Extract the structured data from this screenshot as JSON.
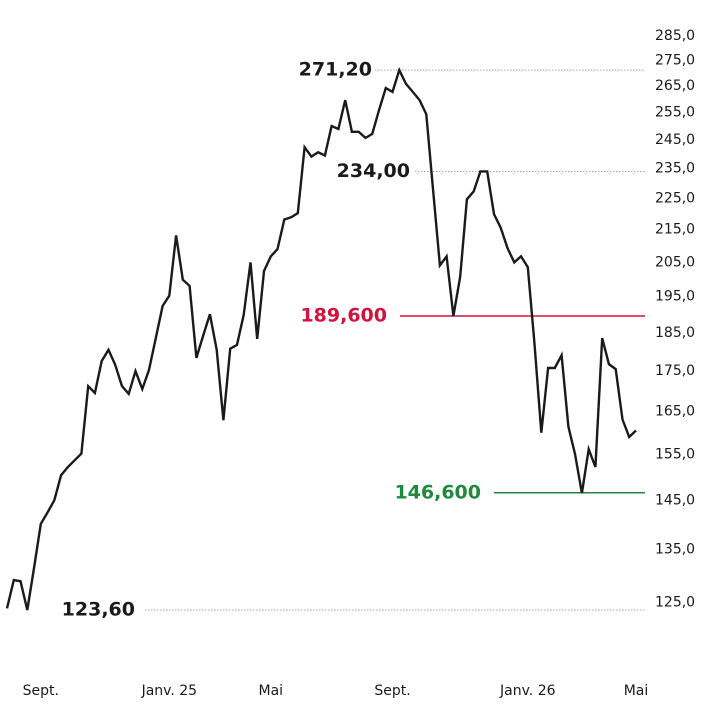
{
  "chart_data": {
    "type": "line",
    "log_scale": true,
    "color": "#1a1a1a",
    "categories": [
      null,
      null,
      null,
      null,
      null,
      "Sept.",
      null,
      null,
      null,
      null,
      null,
      null,
      null,
      null,
      null,
      null,
      null,
      null,
      null,
      null,
      null,
      null,
      null,
      null,
      "Janv. 25",
      null,
      null,
      null,
      null,
      null,
      null,
      null,
      null,
      null,
      null,
      null,
      null,
      null,
      null,
      "Mai",
      null,
      null,
      null,
      null,
      null,
      null,
      null,
      null,
      null,
      null,
      null,
      null,
      null,
      null,
      null,
      null,
      null,
      "Sept.",
      null,
      null,
      null,
      null,
      null,
      null,
      null,
      null,
      null,
      null,
      null,
      null,
      null,
      null,
      null,
      null,
      null,
      null,
      null,
      "Janv. 26",
      null,
      null,
      null,
      null,
      null,
      null,
      null,
      null,
      null,
      null,
      null,
      null,
      null,
      null,
      null,
      "Mai"
    ],
    "values": [
      123.9,
      129.1,
      128.9,
      123.6,
      131.5,
      140.1,
      142.5,
      145,
      150.4,
      152.2,
      153.7,
      155.2,
      171.2,
      169.5,
      177.6,
      180.5,
      176.6,
      171.2,
      169.3,
      175,
      170.5,
      175.3,
      183.6,
      192.4,
      195.3,
      213.2,
      199.9,
      198.1,
      178.4,
      184.2,
      190.1,
      180.5,
      162.9,
      180.8,
      181.8,
      189.9,
      205,
      183.4,
      202.4,
      206.8,
      209,
      218.2,
      218.9,
      220.2,
      242.4,
      239.1,
      240.6,
      239.5,
      250,
      248.9,
      259.6,
      247.9,
      247.9,
      245.7,
      247.1,
      255.8,
      264.2,
      262.7,
      271.2,
      265.8,
      262.7,
      259.6,
      254.3,
      227.7,
      204.1,
      206.8,
      189.6,
      200.8,
      224.7,
      227.3,
      234,
      234,
      219.9,
      215.6,
      209.3,
      205,
      206.8,
      203.6,
      182.1,
      160,
      175.8,
      175.8,
      179.1,
      161.4,
      155,
      146.5,
      156.2,
      152.2,
      183.6,
      176.8,
      175.5,
      163.1,
      159,
      160.5
    ],
    "ylim": [
      122,
      290
    ],
    "yticks": [
      {
        "value": 125,
        "label": "125,0"
      },
      {
        "value": 135,
        "label": "135,0"
      },
      {
        "value": 145,
        "label": "145,0"
      },
      {
        "value": 155,
        "label": "155,0"
      },
      {
        "value": 165,
        "label": "165,0"
      },
      {
        "value": 175,
        "label": "175,0"
      },
      {
        "value": 185,
        "label": "185,0"
      },
      {
        "value": 195,
        "label": "195,0"
      },
      {
        "value": 205,
        "label": "205,0"
      },
      {
        "value": 215,
        "label": "215,0"
      },
      {
        "value": 225,
        "label": "225,0"
      },
      {
        "value": 235,
        "label": "235,0"
      },
      {
        "value": 245,
        "label": "245,0"
      },
      {
        "value": 255,
        "label": "255,0"
      },
      {
        "value": 265,
        "label": "265,0"
      },
      {
        "value": 275,
        "label": "275,0"
      },
      {
        "value": 285,
        "label": "285,0"
      }
    ],
    "annotations": [
      {
        "value": 271.2,
        "label": "271,20",
        "color": "#1a1a1a",
        "style": "dotted"
      },
      {
        "value": 234,
        "label": "234,00",
        "color": "#1a1a1a",
        "style": "dotted"
      },
      {
        "value": 123.6,
        "label": "123,60",
        "color": "#1a1a1a",
        "style": "dotted"
      },
      {
        "value": 189.6,
        "label": "189,600",
        "color": "#d4113c",
        "style": "solid"
      },
      {
        "value": 146.6,
        "label": "146,600",
        "color": "#1d8a3c",
        "style": "solid"
      }
    ]
  }
}
